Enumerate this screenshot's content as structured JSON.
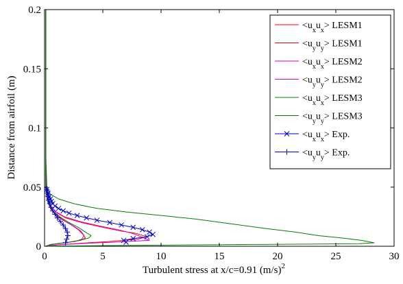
{
  "chart_data": {
    "type": "line",
    "xlabel": "Turbulent stress at x/c=0.91 (m/s)",
    "xlabel_sup": "2",
    "ylabel": "Distance from airfoil (m)",
    "xlim": [
      0,
      30
    ],
    "ylim": [
      0,
      0.2
    ],
    "xticks": [
      0,
      5,
      10,
      15,
      20,
      25,
      30
    ],
    "xtick_labels": [
      "0",
      "5",
      "10",
      "15",
      "20",
      "25",
      "30"
    ],
    "yticks": [
      0,
      0.05,
      0.1,
      0.15,
      0.2
    ],
    "ytick_labels": [
      "0",
      "0.05",
      "0.1",
      "0.15",
      "0.2"
    ],
    "grid": false,
    "legend_position": "top-right",
    "series": [
      {
        "name": "LESM1",
        "name_parts": [
          "<u",
          "x",
          "u",
          "x",
          "> LESM1"
        ],
        "color": "#ff0000",
        "marker": "none",
        "points": [
          [
            0.1,
            0.2
          ],
          [
            0.1,
            0.1
          ],
          [
            0.1,
            0.06
          ],
          [
            0.15,
            0.045
          ],
          [
            0.3,
            0.038
          ],
          [
            0.6,
            0.033
          ],
          [
            1.1,
            0.028
          ],
          [
            1.8,
            0.024
          ],
          [
            3.2,
            0.02
          ],
          [
            5.0,
            0.016
          ],
          [
            6.5,
            0.013
          ],
          [
            7.8,
            0.011
          ],
          [
            8.8,
            0.008
          ],
          [
            8.0,
            0.006
          ],
          [
            5.5,
            0.004
          ],
          [
            3.0,
            0.0025
          ],
          [
            1.0,
            0.001
          ],
          [
            0.1,
            0.0
          ]
        ]
      },
      {
        "name": "LESM1",
        "name_parts": [
          "<u",
          "y",
          "u",
          "y",
          "> LESM1"
        ],
        "color": "#ff0000",
        "marker": "none",
        "points": [
          [
            0.1,
            0.2
          ],
          [
            0.1,
            0.05
          ],
          [
            0.2,
            0.04
          ],
          [
            0.5,
            0.032
          ],
          [
            1.0,
            0.026
          ],
          [
            1.6,
            0.022
          ],
          [
            2.3,
            0.018
          ],
          [
            2.9,
            0.014
          ],
          [
            3.3,
            0.01
          ],
          [
            3.5,
            0.007
          ],
          [
            3.1,
            0.005
          ],
          [
            1.8,
            0.003
          ],
          [
            0.5,
            0.0015
          ],
          [
            0.1,
            0.0
          ]
        ]
      },
      {
        "name": "LESM2",
        "name_parts": [
          "<u",
          "x",
          "u",
          "x",
          "> LESM2"
        ],
        "color": "#cc00cc",
        "marker": "none",
        "points": [
          [
            0.1,
            0.2
          ],
          [
            0.1,
            0.06
          ],
          [
            0.2,
            0.042
          ],
          [
            0.5,
            0.034
          ],
          [
            1.0,
            0.029
          ],
          [
            1.7,
            0.025
          ],
          [
            3.0,
            0.021
          ],
          [
            4.8,
            0.017
          ],
          [
            6.3,
            0.014
          ],
          [
            7.5,
            0.011
          ],
          [
            8.3,
            0.008
          ],
          [
            9.0,
            0.005
          ],
          [
            6.0,
            0.0035
          ],
          [
            3.5,
            0.0025
          ],
          [
            1.2,
            0.0012
          ],
          [
            0.1,
            0.0
          ]
        ]
      },
      {
        "name": "LESM2",
        "name_parts": [
          "<u",
          "y",
          "u",
          "y",
          "> LESM2"
        ],
        "color": "#cc00cc",
        "marker": "none",
        "points": [
          [
            0.1,
            0.2
          ],
          [
            0.1,
            0.05
          ],
          [
            0.25,
            0.038
          ],
          [
            0.6,
            0.031
          ],
          [
            1.1,
            0.026
          ],
          [
            1.8,
            0.021
          ],
          [
            2.5,
            0.017
          ],
          [
            3.1,
            0.013
          ],
          [
            3.4,
            0.009
          ],
          [
            3.2,
            0.006
          ],
          [
            2.6,
            0.004
          ],
          [
            1.2,
            0.0025
          ],
          [
            0.1,
            0.0
          ]
        ]
      },
      {
        "name": "LESM3",
        "name_parts": [
          "<u",
          "x",
          "u",
          "x",
          "> LESM3"
        ],
        "color": "#008000",
        "marker": "none",
        "points": [
          [
            0.1,
            0.2
          ],
          [
            0.1,
            0.08
          ],
          [
            0.2,
            0.05
          ],
          [
            0.5,
            0.044
          ],
          [
            1.2,
            0.04
          ],
          [
            2.5,
            0.036
          ],
          [
            4.5,
            0.032
          ],
          [
            7.0,
            0.029
          ],
          [
            10.0,
            0.026
          ],
          [
            13.0,
            0.023
          ],
          [
            16.0,
            0.019
          ],
          [
            19.0,
            0.015
          ],
          [
            21.5,
            0.012
          ],
          [
            23.5,
            0.009
          ],
          [
            25.5,
            0.007
          ],
          [
            27.2,
            0.005
          ],
          [
            28.0,
            0.0035
          ],
          [
            28.3,
            0.003
          ],
          [
            27.0,
            0.0022
          ],
          [
            18.0,
            0.0015
          ],
          [
            8.0,
            0.0008
          ],
          [
            1.0,
            0.0002
          ],
          [
            0.1,
            0.0
          ]
        ]
      },
      {
        "name": "LESM3",
        "name_parts": [
          "<u",
          "y",
          "u",
          "y",
          "> LESM3"
        ],
        "color": "#008000",
        "marker": "none",
        "points": [
          [
            0.1,
            0.2
          ],
          [
            0.1,
            0.05
          ],
          [
            0.3,
            0.036
          ],
          [
            0.7,
            0.03
          ],
          [
            1.3,
            0.025
          ],
          [
            2.1,
            0.02
          ],
          [
            2.9,
            0.016
          ],
          [
            3.5,
            0.012
          ],
          [
            4.0,
            0.009
          ],
          [
            3.8,
            0.007
          ],
          [
            3.0,
            0.005
          ],
          [
            1.8,
            0.003
          ],
          [
            0.6,
            0.0015
          ],
          [
            0.1,
            0.0
          ]
        ]
      },
      {
        "name": "Exp.",
        "name_parts": [
          "<u",
          "x",
          "u",
          "x",
          "> Exp."
        ],
        "color": "#0000cc",
        "marker": "x",
        "points": [
          [
            0.2,
            0.048
          ],
          [
            0.3,
            0.045
          ],
          [
            0.4,
            0.042
          ],
          [
            0.5,
            0.04
          ],
          [
            0.6,
            0.038
          ],
          [
            0.7,
            0.036
          ],
          [
            0.9,
            0.034
          ],
          [
            1.2,
            0.032
          ],
          [
            1.6,
            0.03
          ],
          [
            2.1,
            0.028
          ],
          [
            2.8,
            0.026
          ],
          [
            3.6,
            0.024
          ],
          [
            4.5,
            0.022
          ],
          [
            5.6,
            0.02
          ],
          [
            6.6,
            0.018
          ],
          [
            7.6,
            0.016
          ],
          [
            8.4,
            0.014
          ],
          [
            9.0,
            0.012
          ],
          [
            9.3,
            0.01
          ],
          [
            8.8,
            0.008
          ],
          [
            7.6,
            0.0065
          ],
          [
            6.8,
            0.005
          ],
          [
            7.0,
            0.0035
          ]
        ]
      },
      {
        "name": "Exp.",
        "name_parts": [
          "<u",
          "y",
          "u",
          "y",
          "> Exp."
        ],
        "color": "#0000cc",
        "marker": "+",
        "points": [
          [
            0.2,
            0.048
          ],
          [
            0.25,
            0.045
          ],
          [
            0.3,
            0.042
          ],
          [
            0.35,
            0.039
          ],
          [
            0.45,
            0.036
          ],
          [
            0.55,
            0.033
          ],
          [
            0.7,
            0.03
          ],
          [
            0.9,
            0.027
          ],
          [
            1.1,
            0.024
          ],
          [
            1.35,
            0.021
          ],
          [
            1.6,
            0.018
          ],
          [
            1.8,
            0.015
          ],
          [
            1.95,
            0.012
          ],
          [
            2.0,
            0.009
          ],
          [
            1.9,
            0.006
          ],
          [
            1.8,
            0.003
          ]
        ]
      }
    ]
  }
}
